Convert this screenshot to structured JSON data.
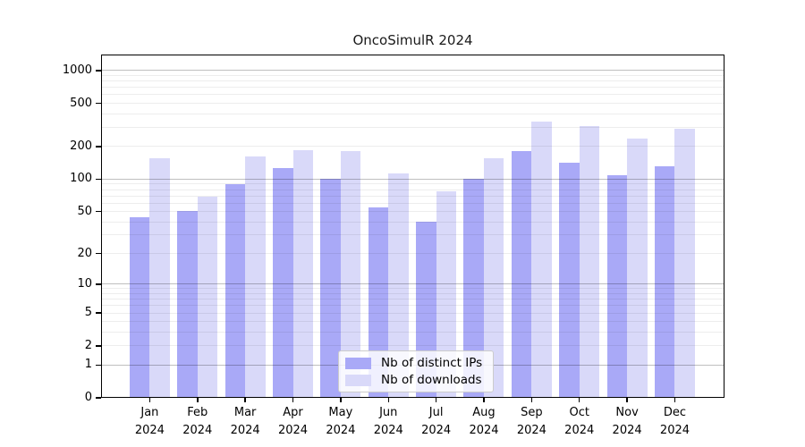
{
  "chart_data": {
    "type": "bar",
    "title": "OncoSimulR 2024",
    "categories": [
      "Jan 2024",
      "Feb 2024",
      "Mar 2024",
      "Apr 2024",
      "May 2024",
      "Jun 2024",
      "Jul 2024",
      "Aug 2024",
      "Sep 2024",
      "Oct 2024",
      "Nov 2024",
      "Dec 2024"
    ],
    "x_tick_months": [
      "Jan",
      "Feb",
      "Mar",
      "Apr",
      "May",
      "Jun",
      "Jul",
      "Aug",
      "Sep",
      "Oct",
      "Nov",
      "Dec"
    ],
    "x_tick_year": "2024",
    "series": [
      {
        "name": "Nb of distinct IPs",
        "color": "#a9a9f7",
        "values": [
          44,
          51,
          90,
          127,
          100,
          55,
          40,
          101,
          183,
          143,
          108,
          132
        ]
      },
      {
        "name": "Nb of downloads",
        "color": "#d9d9f9",
        "values": [
          156,
          69,
          163,
          185,
          181,
          113,
          77,
          157,
          340,
          308,
          238,
          293
        ]
      }
    ],
    "yscale": "log1p",
    "ytick_values": [
      0,
      1,
      2,
      5,
      10,
      20,
      50,
      100,
      200,
      500,
      1000
    ],
    "ytick_labels": [
      "0",
      "1",
      "2",
      "5",
      "10",
      "20",
      "50",
      "100",
      "200",
      "500",
      "1000"
    ],
    "ylim": [
      0,
      1400
    ],
    "grid": "horizontal; major lines at powers of 10, minor lines at 2-9 per decade, drawn over bars",
    "legend_position": "inside-bottom-center",
    "xlabel": "",
    "ylabel": ""
  },
  "colors": {
    "bar_distinct_ips": "#a9a9f7",
    "bar_downloads": "#d9d9f9",
    "grid_major": "#00000040",
    "grid_minor": "#00000012",
    "axis": "#000000",
    "background": "#ffffff",
    "legend_border": "#cccccc"
  }
}
